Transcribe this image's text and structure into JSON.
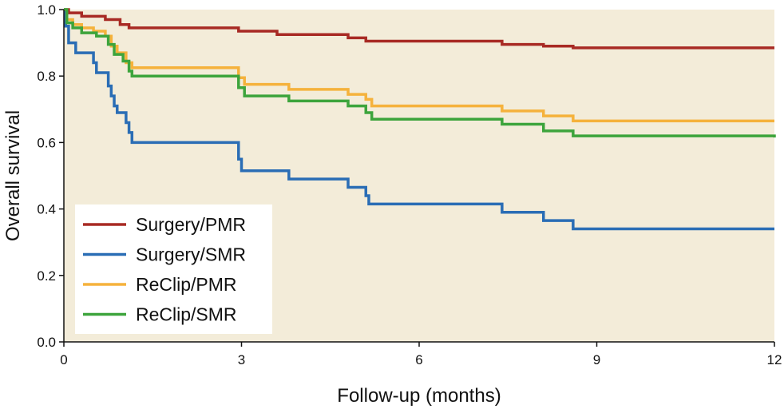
{
  "chart_data": {
    "type": "line",
    "step": true,
    "xlabel": "Follow-up (months)",
    "ylabel": "Overall survival",
    "xlim": [
      0,
      12
    ],
    "ylim": [
      0,
      1
    ],
    "xticks": [
      "0",
      "3",
      "6",
      "9",
      "12"
    ],
    "yticks": [
      "0.0",
      "0.2",
      "0.4",
      "0.6",
      "0.8",
      "1.0"
    ],
    "grid": false,
    "legend_position": "bottom-left",
    "colors": {
      "plot_background": "#f3ecd9",
      "legend_background": "#ffffff"
    },
    "series": [
      {
        "name": "Surgery/PMR",
        "color": "#a82a24",
        "points": [
          [
            0,
            1.0
          ],
          [
            0.08,
            0.99
          ],
          [
            0.3,
            0.98
          ],
          [
            0.7,
            0.97
          ],
          [
            0.95,
            0.955
          ],
          [
            1.1,
            0.945
          ],
          [
            2.95,
            0.935
          ],
          [
            3.6,
            0.925
          ],
          [
            4.8,
            0.915
          ],
          [
            5.1,
            0.905
          ],
          [
            7.4,
            0.895
          ],
          [
            8.1,
            0.89
          ],
          [
            8.6,
            0.885
          ],
          [
            12,
            0.885
          ]
        ]
      },
      {
        "name": "Surgery/SMR",
        "color": "#2a6db5",
        "points": [
          [
            0,
            1.0
          ],
          [
            0.03,
            0.95
          ],
          [
            0.08,
            0.9
          ],
          [
            0.2,
            0.87
          ],
          [
            0.5,
            0.84
          ],
          [
            0.55,
            0.81
          ],
          [
            0.75,
            0.77
          ],
          [
            0.8,
            0.74
          ],
          [
            0.85,
            0.71
          ],
          [
            0.9,
            0.69
          ],
          [
            1.05,
            0.66
          ],
          [
            1.1,
            0.63
          ],
          [
            1.15,
            0.6
          ],
          [
            2.95,
            0.55
          ],
          [
            3.0,
            0.515
          ],
          [
            3.8,
            0.49
          ],
          [
            4.8,
            0.465
          ],
          [
            5.1,
            0.44
          ],
          [
            5.15,
            0.415
          ],
          [
            7.4,
            0.39
          ],
          [
            8.1,
            0.365
          ],
          [
            8.6,
            0.34
          ],
          [
            12,
            0.34
          ]
        ]
      },
      {
        "name": "ReClip/PMR",
        "color": "#f5b23c",
        "points": [
          [
            0,
            1.0
          ],
          [
            0.05,
            0.97
          ],
          [
            0.15,
            0.955
          ],
          [
            0.3,
            0.945
          ],
          [
            0.5,
            0.935
          ],
          [
            0.7,
            0.92
          ],
          [
            0.8,
            0.89
          ],
          [
            0.9,
            0.87
          ],
          [
            1.05,
            0.84
          ],
          [
            1.15,
            0.825
          ],
          [
            2.95,
            0.795
          ],
          [
            3.05,
            0.775
          ],
          [
            3.8,
            0.76
          ],
          [
            4.8,
            0.745
          ],
          [
            5.1,
            0.73
          ],
          [
            5.2,
            0.71
          ],
          [
            7.4,
            0.695
          ],
          [
            8.1,
            0.68
          ],
          [
            8.6,
            0.665
          ],
          [
            12,
            0.665
          ]
        ]
      },
      {
        "name": "ReClip/SMR",
        "color": "#3da43c",
        "points": [
          [
            0,
            1.0
          ],
          [
            0.05,
            0.96
          ],
          [
            0.15,
            0.945
          ],
          [
            0.3,
            0.93
          ],
          [
            0.55,
            0.92
          ],
          [
            0.75,
            0.895
          ],
          [
            0.85,
            0.865
          ],
          [
            1.0,
            0.845
          ],
          [
            1.1,
            0.815
          ],
          [
            1.15,
            0.8
          ],
          [
            2.95,
            0.765
          ],
          [
            3.05,
            0.74
          ],
          [
            3.8,
            0.725
          ],
          [
            4.8,
            0.71
          ],
          [
            5.1,
            0.69
          ],
          [
            5.2,
            0.67
          ],
          [
            7.4,
            0.655
          ],
          [
            8.1,
            0.635
          ],
          [
            8.6,
            0.62
          ],
          [
            12,
            0.615
          ]
        ]
      }
    ]
  }
}
